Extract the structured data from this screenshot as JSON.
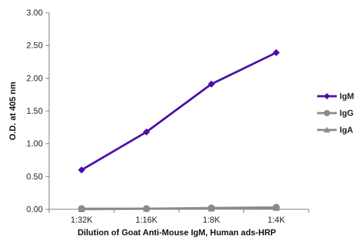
{
  "chart_data": {
    "type": "line",
    "categories": [
      "1:32K",
      "1:16K",
      "1:8K",
      "1:4K"
    ],
    "ylim": [
      0,
      3
    ],
    "yticks": [
      "0.00",
      "0.50",
      "1.00",
      "1.50",
      "2.00",
      "2.50",
      "3.00"
    ],
    "ytick_values": [
      0,
      0.5,
      1,
      1.5,
      2,
      2.5,
      3
    ],
    "xlabel": "Dilution of Goat Anti-Mouse IgM, Human ads-HRP",
    "ylabel": "O.D. at 405 nm",
    "grid": false,
    "legend": "right",
    "series": [
      {
        "name": "IgM",
        "values": [
          0.6,
          1.18,
          1.91,
          2.39
        ],
        "color": "#4b0fa8",
        "marker": "diamond"
      },
      {
        "name": "IgG",
        "values": [
          0.01,
          0.01,
          0.02,
          0.03
        ],
        "color": "#8a8a8a",
        "marker": "circle"
      },
      {
        "name": "IgA",
        "values": [
          0.0,
          0.01,
          0.01,
          0.02
        ],
        "color": "#8a8a8a",
        "marker": "triangle"
      }
    ]
  }
}
